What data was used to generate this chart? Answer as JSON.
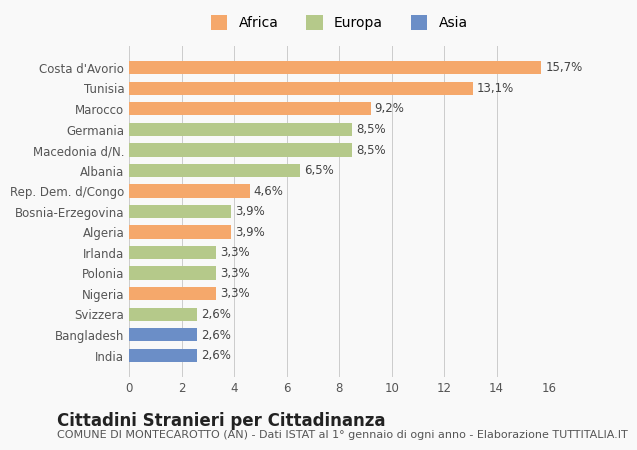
{
  "categories": [
    "Costa d'Avorio",
    "Tunisia",
    "Marocco",
    "Germania",
    "Macedonia d/N.",
    "Albania",
    "Rep. Dem. d/Congo",
    "Bosnia-Erzegovina",
    "Algeria",
    "Irlanda",
    "Polonia",
    "Nigeria",
    "Svizzera",
    "Bangladesh",
    "India"
  ],
  "values": [
    15.7,
    13.1,
    9.2,
    8.5,
    8.5,
    6.5,
    4.6,
    3.9,
    3.9,
    3.3,
    3.3,
    3.3,
    2.6,
    2.6,
    2.6
  ],
  "labels": [
    "15,7%",
    "13,1%",
    "9,2%",
    "8,5%",
    "8,5%",
    "6,5%",
    "4,6%",
    "3,9%",
    "3,9%",
    "3,3%",
    "3,3%",
    "3,3%",
    "2,6%",
    "2,6%",
    "2,6%"
  ],
  "colors": [
    "#F5A86B",
    "#F5A86B",
    "#F5A86B",
    "#B5C98A",
    "#B5C98A",
    "#B5C98A",
    "#F5A86B",
    "#B5C98A",
    "#F5A86B",
    "#B5C98A",
    "#B5C98A",
    "#F5A86B",
    "#B5C98A",
    "#6B8EC7",
    "#6B8EC7"
  ],
  "legend_labels": [
    "Africa",
    "Europa",
    "Asia"
  ],
  "legend_colors": [
    "#F5A86B",
    "#B5C98A",
    "#6B8EC7"
  ],
  "title": "Cittadini Stranieri per Cittadinanza",
  "subtitle": "COMUNE DI MONTECAROTTO (AN) - Dati ISTAT al 1° gennaio di ogni anno - Elaborazione TUTTITALIA.IT",
  "xlim": [
    0,
    16
  ],
  "xticks": [
    0,
    2,
    4,
    6,
    8,
    10,
    12,
    14,
    16
  ],
  "background_color": "#f9f9f9",
  "grid_color": "#cccccc",
  "bar_height": 0.65,
  "title_fontsize": 12,
  "subtitle_fontsize": 8,
  "label_fontsize": 8.5,
  "tick_fontsize": 8.5,
  "legend_fontsize": 10
}
